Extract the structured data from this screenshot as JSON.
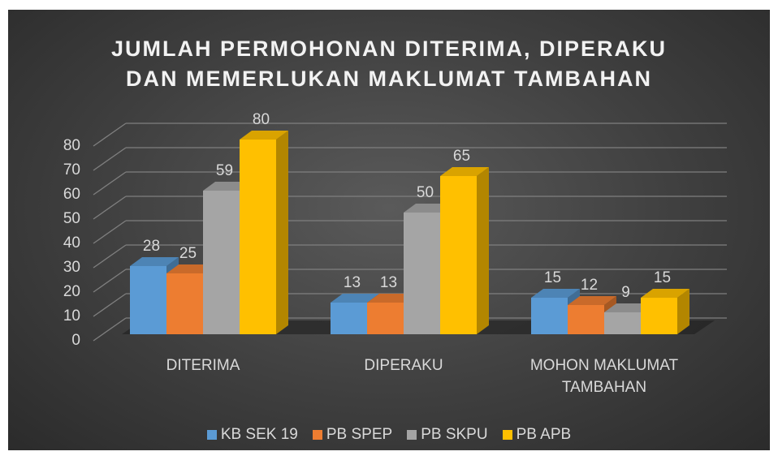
{
  "chart_data": {
    "type": "bar3d",
    "title": "JUMLAH PERMOHONAN DITERIMA, DIPERAKU DAN MEMERLUKAN MAKLUMAT TAMBAHAN",
    "categories": [
      "DITERIMA",
      "DIPERAKU",
      "MOHON MAKLUMAT TAMBAHAN"
    ],
    "series": [
      {
        "name": "KB SEK 19",
        "color": "#5b9bd5",
        "values": [
          28,
          13,
          15
        ]
      },
      {
        "name": "PB SPEP",
        "color": "#ed7d31",
        "values": [
          25,
          13,
          12
        ]
      },
      {
        "name": "PB SKPU",
        "color": "#a5a5a5",
        "values": [
          59,
          50,
          9
        ]
      },
      {
        "name": "PB APB",
        "color": "#ffc000",
        "values": [
          80,
          65,
          15
        ]
      }
    ],
    "ylim": [
      0,
      80
    ],
    "yticks": [
      0,
      10,
      20,
      30,
      40,
      50,
      60,
      70,
      80
    ],
    "grid": true,
    "legend": "bottom"
  }
}
